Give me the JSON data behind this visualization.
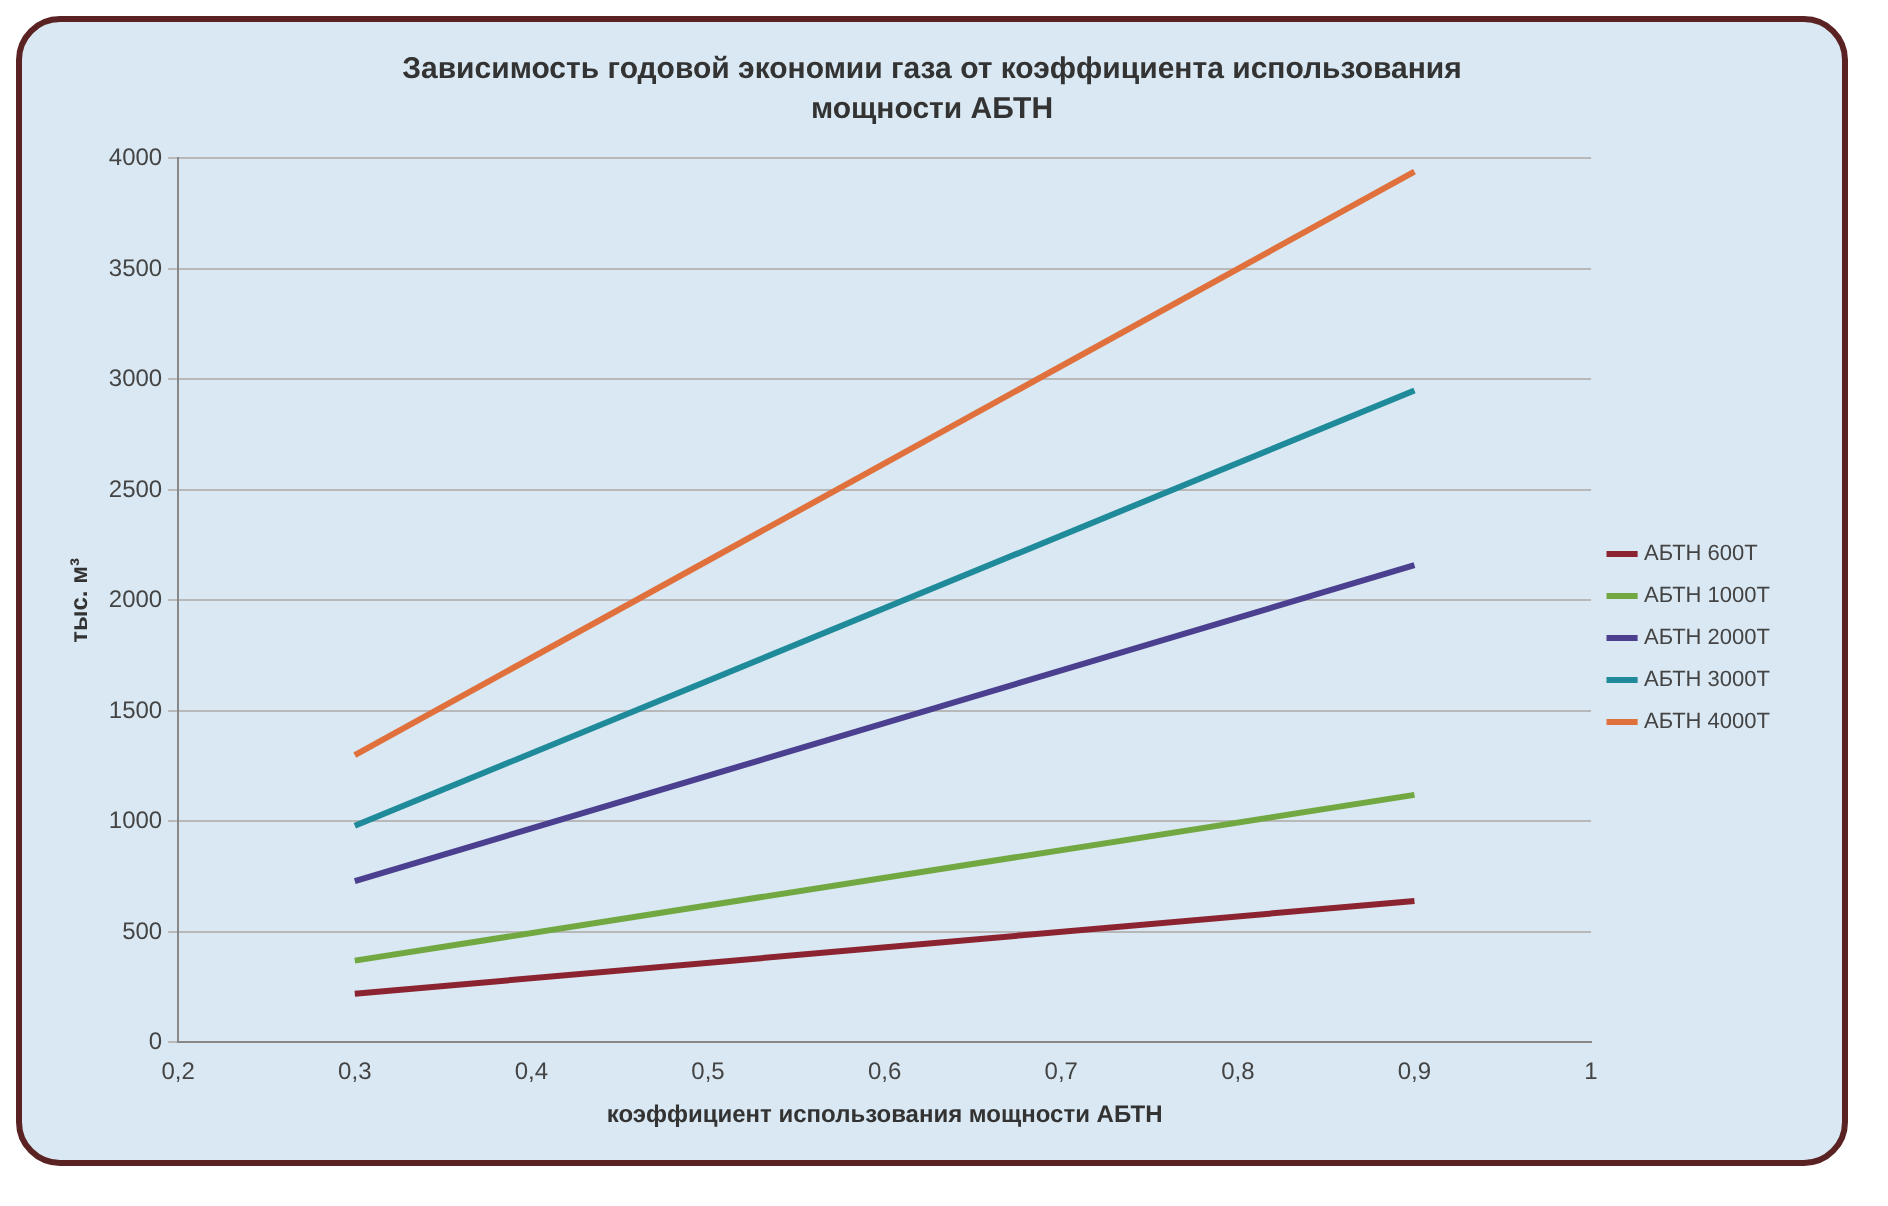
{
  "chart_data": {
    "type": "line",
    "title": "Зависимость годовой экономии газа от коэффициента использования мощности АБТН",
    "xlabel": "коэффициент использования мощности АБТН",
    "ylabel": "тыс. м³",
    "x": [
      0.3,
      0.9
    ],
    "series": [
      {
        "name": "АБТН 600Т",
        "color": "#8b2331",
        "values": [
          220,
          640
        ]
      },
      {
        "name": "АБТН 1000Т",
        "color": "#72a842",
        "values": [
          370,
          1120
        ]
      },
      {
        "name": "АБТН 2000Т",
        "color": "#4b3f8f",
        "values": [
          730,
          2160
        ]
      },
      {
        "name": "АБТН 3000Т",
        "color": "#1f8a99",
        "values": [
          980,
          2950
        ]
      },
      {
        "name": "АБТН 4000Т",
        "color": "#e0703c",
        "values": [
          1300,
          3940
        ]
      }
    ],
    "xlim": [
      0.2,
      1
    ],
    "xticks": [
      {
        "value": 0.2,
        "label": "0,2"
      },
      {
        "value": 0.3,
        "label": "0,3"
      },
      {
        "value": 0.4,
        "label": "0,4"
      },
      {
        "value": 0.5,
        "label": "0,5"
      },
      {
        "value": 0.6,
        "label": "0,6"
      },
      {
        "value": 0.7,
        "label": "0,7"
      },
      {
        "value": 0.8,
        "label": "0,8"
      },
      {
        "value": 0.9,
        "label": "0,9"
      },
      1
    ],
    "ylim": [
      0,
      4000
    ],
    "yticks": [
      0,
      500,
      1000,
      1500,
      2000,
      2500,
      3000,
      3500,
      4000
    ],
    "grid": "y",
    "legend": "right",
    "marker": "none",
    "line_style": "solid"
  }
}
